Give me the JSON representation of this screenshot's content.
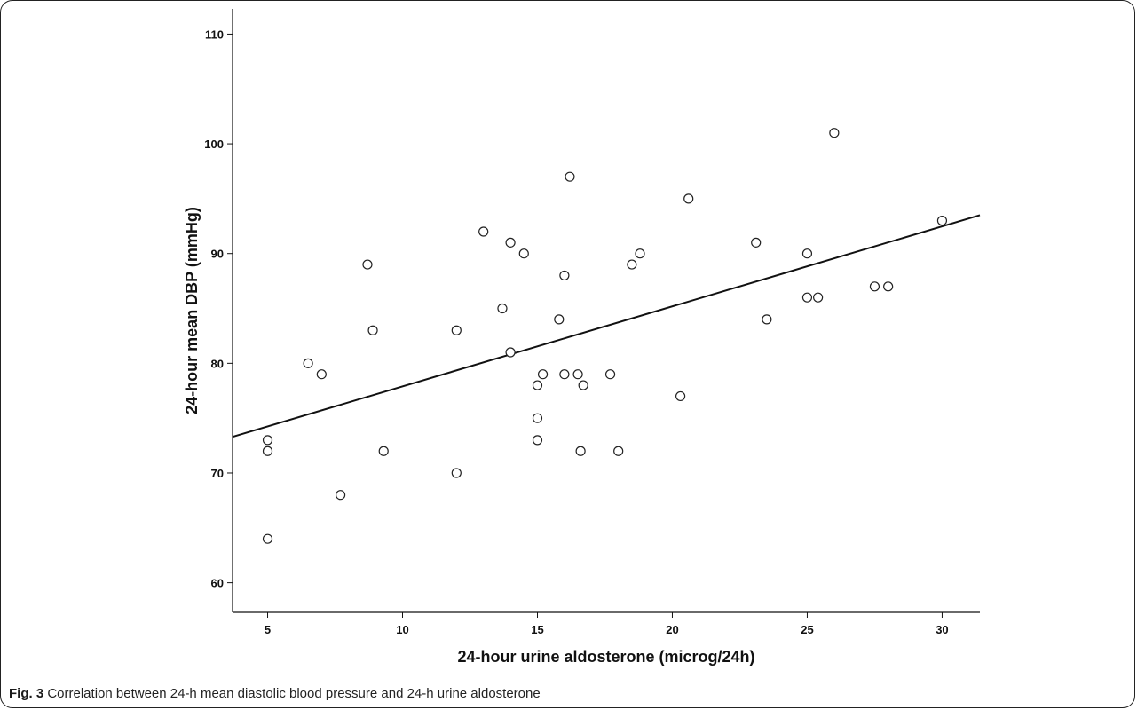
{
  "caption": {
    "label": "Fig. 3",
    "text": "Correlation between 24-h mean diastolic blood pressure and 24-h urine aldosterone"
  },
  "chart_data": {
    "type": "scatter",
    "title": "",
    "xlabel": "24-hour urine aldosterone (microg/24h)",
    "ylabel": "24-hour mean DBP (mmHg)",
    "xlim": [
      3.7,
      31.4
    ],
    "ylim": [
      57.3,
      112.3
    ],
    "xticks": [
      5,
      10,
      15,
      20,
      25,
      30
    ],
    "yticks": [
      60,
      70,
      80,
      90,
      100,
      110
    ],
    "grid": false,
    "marker": "open-circle",
    "points": [
      [
        5,
        73
      ],
      [
        5,
        72
      ],
      [
        5,
        64
      ],
      [
        6.5,
        80
      ],
      [
        7,
        79
      ],
      [
        7.7,
        68
      ],
      [
        8.7,
        89
      ],
      [
        8.9,
        83
      ],
      [
        9.3,
        72
      ],
      [
        12,
        83
      ],
      [
        12,
        70
      ],
      [
        13,
        92
      ],
      [
        13.7,
        85
      ],
      [
        14,
        91
      ],
      [
        14,
        81
      ],
      [
        14.5,
        90
      ],
      [
        15,
        78
      ],
      [
        15,
        75
      ],
      [
        15,
        73
      ],
      [
        15.2,
        79
      ],
      [
        15.8,
        84
      ],
      [
        16,
        88
      ],
      [
        16,
        79
      ],
      [
        16.2,
        97
      ],
      [
        16.5,
        79
      ],
      [
        16.6,
        72
      ],
      [
        16.7,
        78
      ],
      [
        17.7,
        79
      ],
      [
        18,
        72
      ],
      [
        18.5,
        89
      ],
      [
        18.8,
        90
      ],
      [
        20.3,
        77
      ],
      [
        20.6,
        95
      ],
      [
        23.1,
        91
      ],
      [
        23.5,
        84
      ],
      [
        25,
        90
      ],
      [
        25,
        86
      ],
      [
        25.4,
        86
      ],
      [
        26,
        101
      ],
      [
        27.5,
        87
      ],
      [
        28,
        87
      ],
      [
        30,
        93
      ]
    ],
    "fit_line": {
      "x": [
        3.7,
        31.4
      ],
      "y": [
        73.3,
        93.5
      ]
    },
    "colors": {
      "axis": "#111111",
      "marker_stroke": "#222222",
      "marker_fill": "#ffffff",
      "fit_line": "#111111"
    }
  }
}
